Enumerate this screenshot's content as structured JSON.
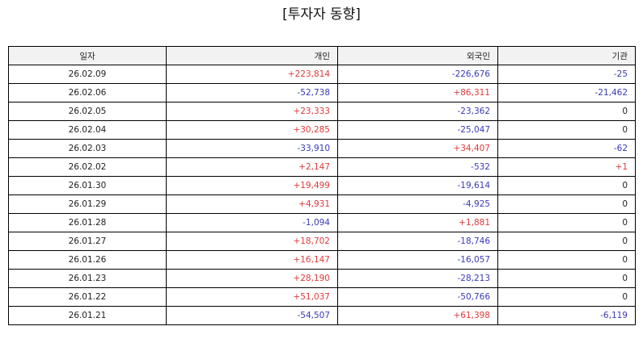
{
  "title": "[투자자 동향]",
  "headers": {
    "date": "일자",
    "individual": "개인",
    "foreign": "외국인",
    "institution": "기관"
  },
  "colors": {
    "positive": "#e03a3a",
    "negative": "#3a3ab8",
    "neutral": "#222222",
    "header_bg": "#f2f2f2"
  },
  "rows": [
    {
      "date": "26.02.09",
      "individual": "+223,814",
      "foreign": "-226,676",
      "institution": "-25"
    },
    {
      "date": "26.02.06",
      "individual": "-52,738",
      "foreign": "+86,311",
      "institution": "-21,462"
    },
    {
      "date": "26.02.05",
      "individual": "+23,333",
      "foreign": "-23,362",
      "institution": "0"
    },
    {
      "date": "26.02.04",
      "individual": "+30,285",
      "foreign": "-25,047",
      "institution": "0"
    },
    {
      "date": "26.02.03",
      "individual": "-33,910",
      "foreign": "+34,407",
      "institution": "-62"
    },
    {
      "date": "26.02.02",
      "individual": "+2,147",
      "foreign": "-532",
      "institution": "+1"
    },
    {
      "date": "26.01.30",
      "individual": "+19,499",
      "foreign": "-19,614",
      "institution": "0"
    },
    {
      "date": "26.01.29",
      "individual": "+4,931",
      "foreign": "-4,925",
      "institution": "0"
    },
    {
      "date": "26.01.28",
      "individual": "-1,094",
      "foreign": "+1,881",
      "institution": "0"
    },
    {
      "date": "26.01.27",
      "individual": "+18,702",
      "foreign": "-18,746",
      "institution": "0"
    },
    {
      "date": "26.01.26",
      "individual": "+16,147",
      "foreign": "-16,057",
      "institution": "0"
    },
    {
      "date": "26.01.23",
      "individual": "+28,190",
      "foreign": "-28,213",
      "institution": "0"
    },
    {
      "date": "26.01.22",
      "individual": "+51,037",
      "foreign": "-50,766",
      "institution": "0"
    },
    {
      "date": "26.01.21",
      "individual": "-54,507",
      "foreign": "+61,398",
      "institution": "-6,119"
    }
  ]
}
